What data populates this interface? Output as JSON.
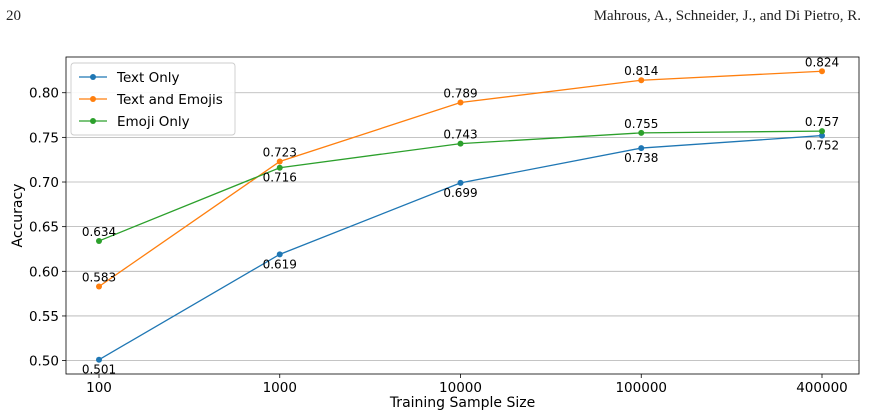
{
  "page": {
    "number": "20",
    "running_head": "Mahrous, A., Schneider, J., and Di Pietro, R."
  },
  "chart_data": {
    "type": "line",
    "title": "",
    "xlabel": "Training Sample Size",
    "ylabel": "Accuracy",
    "categories": [
      "100",
      "1000",
      "10000",
      "100000",
      "400000"
    ],
    "ylim": [
      0.485,
      0.84
    ],
    "yticks": [
      0.5,
      0.55,
      0.6,
      0.65,
      0.7,
      0.75,
      0.8
    ],
    "ytick_labels": [
      "0.50",
      "0.55",
      "0.60",
      "0.65",
      "0.70",
      "0.75",
      "0.80"
    ],
    "grid": "horizontal",
    "legend_position": "top-left",
    "series": [
      {
        "name": "Text Only",
        "color": "#1f77b4",
        "values": [
          0.501,
          0.619,
          0.699,
          0.738,
          0.752
        ],
        "labels": [
          "0.501",
          "0.619",
          "0.699",
          "0.738",
          "0.752"
        ],
        "label_side": [
          "below",
          "below",
          "below",
          "below",
          "below"
        ]
      },
      {
        "name": "Text and Emojis",
        "color": "#ff7f0e",
        "values": [
          0.583,
          0.723,
          0.789,
          0.814,
          0.824
        ],
        "labels": [
          "0.583",
          "0.723",
          "0.789",
          "0.814",
          "0.824"
        ],
        "label_side": [
          "above",
          "above",
          "above",
          "above",
          "above"
        ]
      },
      {
        "name": "Emoji Only",
        "color": "#2ca02c",
        "values": [
          0.634,
          0.716,
          0.743,
          0.755,
          0.757
        ],
        "labels": [
          "0.634",
          "0.716",
          "0.743",
          "0.755",
          "0.757"
        ],
        "label_side": [
          "above",
          "below",
          "above",
          "above",
          "above"
        ]
      }
    ]
  }
}
